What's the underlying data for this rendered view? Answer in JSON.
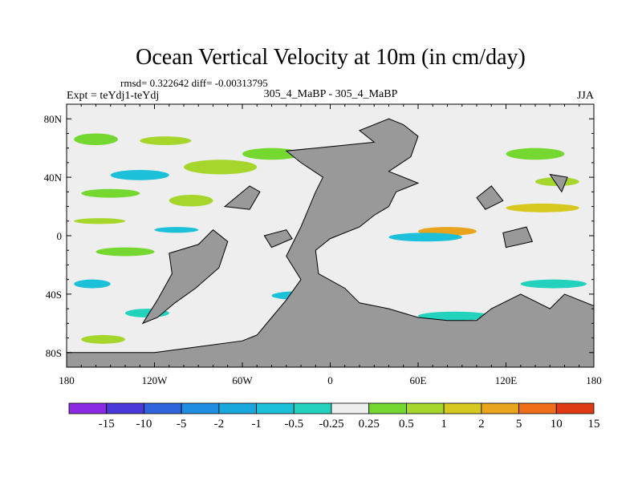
{
  "chart_data": {
    "type": "heatmap",
    "title": "Ocean Vertical Velocity at 10m (in cm/day)",
    "stats": "rmsd= 0.322642 diff= -0.00313795",
    "expt": "Expt = teYdj1-teYdj",
    "subtitle": "305_4_MaBP - 305_4_MaBP",
    "season": "JJA",
    "x_ticks": [
      "180",
      "120W",
      "60W",
      "0",
      "60E",
      "120E",
      "180"
    ],
    "x_tick_values": [
      -180,
      -120,
      -60,
      0,
      60,
      120,
      180
    ],
    "y_ticks": [
      "80N",
      "40N",
      "0",
      "40S",
      "80S"
    ],
    "y_tick_values": [
      80,
      40,
      0,
      -40,
      -80
    ],
    "xlim": [
      -180,
      180
    ],
    "ylim": [
      -90,
      90
    ],
    "colorbar_labels": [
      "-15",
      "-10",
      "-5",
      "-2",
      "-1",
      "-0.5",
      "-0.25",
      "0.25",
      "0.5",
      "1",
      "2",
      "5",
      "10",
      "15"
    ],
    "colorbar_colors": [
      "#8a2be2",
      "#4b38d8",
      "#2f64dc",
      "#1f8ee0",
      "#18a8de",
      "#1cc0d8",
      "#22d2bc",
      "#eeeeee",
      "#74d830",
      "#a6d62c",
      "#d6c81e",
      "#e8a41c",
      "#ee6e1a",
      "#e03a14"
    ],
    "land_color": "#999999",
    "ocean_neutral_color": "#eeeeee",
    "anomaly_bands": [
      {
        "lon": [
          -175,
          -145
        ],
        "lat": [
          70,
          62
        ],
        "level": 8
      },
      {
        "lon": [
          -130,
          -95
        ],
        "lat": [
          68,
          62
        ],
        "level": 9
      },
      {
        "lon": [
          -60,
          -20
        ],
        "lat": [
          60,
          52
        ],
        "level": 8
      },
      {
        "lon": [
          -100,
          -50
        ],
        "lat": [
          52,
          42
        ],
        "level": 9
      },
      {
        "lon": [
          -150,
          -110
        ],
        "lat": [
          45,
          38
        ],
        "level": 5
      },
      {
        "lon": [
          -170,
          -130
        ],
        "lat": [
          32,
          26
        ],
        "level": 8
      },
      {
        "lon": [
          -110,
          -80
        ],
        "lat": [
          28,
          20
        ],
        "level": 9
      },
      {
        "lon": [
          -175,
          -140
        ],
        "lat": [
          12,
          8
        ],
        "level": 9
      },
      {
        "lon": [
          -120,
          -90
        ],
        "lat": [
          6,
          2
        ],
        "level": 5
      },
      {
        "lon": [
          -160,
          -120
        ],
        "lat": [
          -8,
          -14
        ],
        "level": 8
      },
      {
        "lon": [
          -175,
          -150
        ],
        "lat": [
          -30,
          -36
        ],
        "level": 5
      },
      {
        "lon": [
          -140,
          -110
        ],
        "lat": [
          -50,
          -56
        ],
        "level": 6
      },
      {
        "lon": [
          -170,
          -140
        ],
        "lat": [
          -68,
          -74
        ],
        "level": 9
      },
      {
        "lon": [
          60,
          100
        ],
        "lat": [
          6,
          0
        ],
        "level": 11
      },
      {
        "lon": [
          40,
          90
        ],
        "lat": [
          2,
          -4
        ],
        "level": 5
      },
      {
        "lon": [
          120,
          160
        ],
        "lat": [
          60,
          52
        ],
        "level": 8
      },
      {
        "lon": [
          140,
          170
        ],
        "lat": [
          40,
          34
        ],
        "level": 9
      },
      {
        "lon": [
          120,
          170
        ],
        "lat": [
          22,
          16
        ],
        "level": 10
      },
      {
        "lon": [
          130,
          175
        ],
        "lat": [
          -30,
          -36
        ],
        "level": 6
      },
      {
        "lon": [
          -40,
          0
        ],
        "lat": [
          -38,
          -44
        ],
        "level": 5
      },
      {
        "lon": [
          60,
          110
        ],
        "lat": [
          -52,
          -58
        ],
        "level": 6
      },
      {
        "lon": [
          170,
          180
        ],
        "lat": [
          -80,
          -86
        ],
        "level": 5
      }
    ],
    "land_polygons": [
      [
        [
          -180,
          -80
        ],
        [
          -120,
          -80
        ],
        [
          -90,
          -76
        ],
        [
          -60,
          -72
        ],
        [
          -50,
          -68
        ],
        [
          -40,
          -56
        ],
        [
          -30,
          -44
        ],
        [
          -20,
          -30
        ],
        [
          -30,
          -14
        ],
        [
          -20,
          6
        ],
        [
          -10,
          30
        ],
        [
          -5,
          40
        ],
        [
          -20,
          50
        ],
        [
          -30,
          58
        ],
        [
          -10,
          60
        ],
        [
          30,
          64
        ],
        [
          20,
          72
        ],
        [
          40,
          80
        ],
        [
          50,
          76
        ],
        [
          60,
          68
        ],
        [
          55,
          54
        ],
        [
          40,
          44
        ],
        [
          60,
          36
        ],
        [
          45,
          30
        ],
        [
          40,
          20
        ],
        [
          30,
          14
        ],
        [
          20,
          6
        ],
        [
          0,
          -2
        ],
        [
          -10,
          -10
        ],
        [
          -8,
          -26
        ],
        [
          10,
          -36
        ],
        [
          20,
          -46
        ],
        [
          40,
          -50
        ],
        [
          60,
          -56
        ],
        [
          80,
          -58
        ],
        [
          100,
          -58
        ],
        [
          110,
          -50
        ],
        [
          130,
          -40
        ],
        [
          150,
          -50
        ],
        [
          160,
          -40
        ],
        [
          180,
          -48
        ],
        [
          180,
          -90
        ],
        [
          -180,
          -90
        ]
      ],
      [
        [
          -110,
          -12
        ],
        [
          -90,
          -6
        ],
        [
          -80,
          4
        ],
        [
          -70,
          -4
        ],
        [
          -76,
          -22
        ],
        [
          -92,
          -36
        ],
        [
          -106,
          -46
        ],
        [
          -118,
          -56
        ],
        [
          -128,
          -60
        ],
        [
          -118,
          -44
        ],
        [
          -108,
          -26
        ]
      ],
      [
        [
          -72,
          20
        ],
        [
          -55,
          34
        ],
        [
          -48,
          30
        ],
        [
          -55,
          18
        ]
      ],
      [
        [
          -45,
          0
        ],
        [
          -30,
          4
        ],
        [
          -26,
          -2
        ],
        [
          -40,
          -8
        ]
      ],
      [
        [
          100,
          26
        ],
        [
          110,
          34
        ],
        [
          118,
          24
        ],
        [
          106,
          18
        ]
      ],
      [
        [
          118,
          2
        ],
        [
          134,
          6
        ],
        [
          138,
          -4
        ],
        [
          120,
          -8
        ]
      ],
      [
        [
          150,
          42
        ],
        [
          162,
          40
        ],
        [
          158,
          30
        ]
      ]
    ]
  }
}
